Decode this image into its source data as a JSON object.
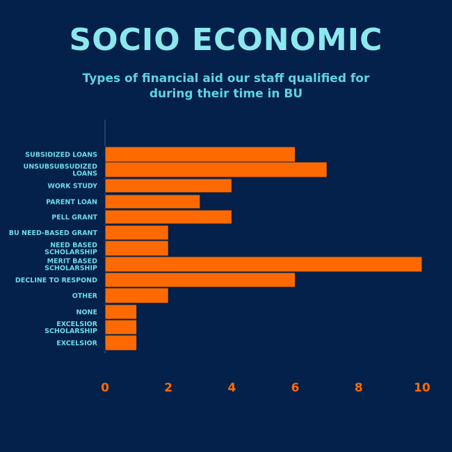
{
  "title": "SOCIO ECONOMIC",
  "subtitle": "Types of financial aid our staff qualified for during their time in BU",
  "colors": {
    "background": "#03214a",
    "bar": "#ff6a00",
    "bar_stroke": "#03214a",
    "title": "#8ce8ee",
    "subtitle": "#5fd4e0",
    "category_label": "#6fdbe6",
    "tick_label": "#ff6a00",
    "axis": "#4a5f80"
  },
  "chart_data": {
    "type": "bar",
    "orientation": "horizontal",
    "title": "SOCIO ECONOMIC",
    "subtitle": "Types of financial aid our staff qualified for during their time in BU",
    "xlabel": "",
    "ylabel": "",
    "xlim": [
      0,
      10
    ],
    "xticks": [
      "0",
      "2",
      "4",
      "6",
      "8",
      "10"
    ],
    "grid": false,
    "legend": "none",
    "categories": [
      "SUBSIDIZED LOANS",
      "UNSUBSUBSUDIZED LOANS",
      "WORK STUDY",
      "PARENT LOAN",
      "PELL GRANT",
      "BU NEED-BASED GRANT",
      "NEED BASED SCHOLARSHIP",
      "MERIT BASED SCHOLARSHIP",
      "DECLINE TO RESPOND",
      "OTHER",
      "NONE",
      "EXCELSIOR SCHOLARSHIP",
      "EXCELSIOR"
    ],
    "values": [
      6,
      7,
      4,
      3,
      4,
      2,
      2,
      10,
      6,
      2,
      1,
      1,
      1
    ]
  }
}
